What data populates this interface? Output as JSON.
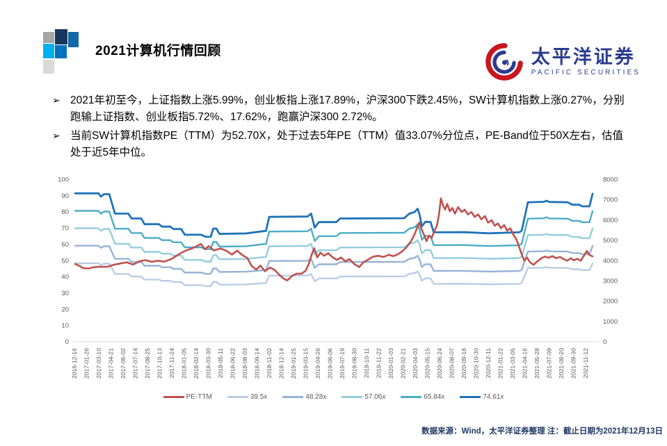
{
  "slide": {
    "title": "2021计算机行情回顾",
    "bullet_marker": "➢",
    "bullets": [
      "2021年初至今，上证指数上涨5.99%，创业板指上涨17.89%，沪深300下跌2.45%，SW计算机指数上涨0.27%，分别跑输上证指数、创业板指5.72%、17.62%，跑赢沪深300 2.72%。",
      "当前SW计算机指数PE（TTM）为52.70X，处于过去5年PE（TTM）值33.07%分位点，PE-Band位于50X左右，估值处于近5年中位。"
    ],
    "logo": {
      "cn": "太平洋证券",
      "en": "PACIFIC SECURITIES",
      "brand_blue": "#2a3b8f",
      "brand_red": "#c8161e"
    },
    "footer": "数据来源：Wind，太平洋证券整理 注：截止日期为2021年12月13日"
  },
  "chart_data": {
    "type": "line",
    "title": "",
    "grid": false,
    "legend_position": "bottom",
    "left_axis": {
      "min": 0,
      "max": 100,
      "step": 10
    },
    "right_axis": {
      "min": 0,
      "max": 8000,
      "step": 1000
    },
    "axis_label_color": "#595959",
    "x_labels": [
      "2016-12-16",
      "2017-01-26",
      "2017-03-10",
      "2017-04-21",
      "2017-06-02",
      "2017-07-14",
      "2017-08-25",
      "2017-10-13",
      "2017-11-24",
      "2018-01-05",
      "2018-02-14",
      "2018-03-30",
      "2018-05-11",
      "2018-06-22",
      "2018-08-03",
      "2018-09-14",
      "2018-11-02",
      "2018-12-14",
      "2019-01-25",
      "2019-03-15",
      "2019-04-26",
      "2019-06-06",
      "2019-07-19",
      "2019-08-30",
      "2019-10-11",
      "2019-11-22",
      "2020-01-03",
      "2020-02-21",
      "2020-04-03",
      "2020-05-15",
      "2020-06-24",
      "2020-08-07",
      "2020-09-18",
      "2020-10-30",
      "2020-12-11",
      "2021-01-22",
      "2021-03-05",
      "2021-04-16",
      "2021-05-28",
      "2021-07-09",
      "2021-08-20",
      "2021-09-30",
      "2021-11-12"
    ],
    "band_reference": {
      "multiple": 74.61,
      "note": "PE-band series value = reference value × (series multiple / 74.61); x is fraction of plot width (2016-12-16 → 2021-12-13), y is PE on left axis (right axis = left × 80)",
      "points": [
        [
          0.0,
          91.5
        ],
        [
          0.045,
          91.5
        ],
        [
          0.05,
          89.5
        ],
        [
          0.056,
          91.0
        ],
        [
          0.066,
          91.0
        ],
        [
          0.077,
          79.0
        ],
        [
          0.103,
          79.0
        ],
        [
          0.109,
          76.0
        ],
        [
          0.128,
          76.0
        ],
        [
          0.134,
          72.5
        ],
        [
          0.162,
          72.5
        ],
        [
          0.168,
          71.0
        ],
        [
          0.184,
          71.0
        ],
        [
          0.19,
          69.5
        ],
        [
          0.205,
          69.5
        ],
        [
          0.212,
          66.0
        ],
        [
          0.244,
          66.0
        ],
        [
          0.252,
          64.7
        ],
        [
          0.262,
          64.7
        ],
        [
          0.267,
          69.8
        ],
        [
          0.273,
          69.8
        ],
        [
          0.279,
          66.5
        ],
        [
          0.33,
          66.8
        ],
        [
          0.363,
          68.2
        ],
        [
          0.369,
          68.4
        ],
        [
          0.375,
          77.0
        ],
        [
          0.449,
          77.2
        ],
        [
          0.456,
          79.0
        ],
        [
          0.463,
          70.4
        ],
        [
          0.471,
          73.8
        ],
        [
          0.505,
          73.8
        ],
        [
          0.512,
          76.0
        ],
        [
          0.575,
          76.1
        ],
        [
          0.636,
          76.2
        ],
        [
          0.646,
          79.0
        ],
        [
          0.656,
          80.0
        ],
        [
          0.662,
          82.0
        ],
        [
          0.666,
          78.0
        ],
        [
          0.67,
          71.2
        ],
        [
          0.677,
          74.0
        ],
        [
          0.687,
          73.8
        ],
        [
          0.693,
          67.5
        ],
        [
          0.75,
          67.6
        ],
        [
          0.8,
          66.9
        ],
        [
          0.858,
          67.5
        ],
        [
          0.863,
          68.5
        ],
        [
          0.875,
          86.0
        ],
        [
          0.906,
          86.3
        ],
        [
          0.911,
          87.0
        ],
        [
          0.916,
          86.2
        ],
        [
          0.952,
          86.0
        ],
        [
          0.961,
          84.5
        ],
        [
          0.974,
          84.5
        ],
        [
          0.98,
          83.5
        ],
        [
          0.994,
          83.5
        ],
        [
          1.0,
          91.3
        ]
      ]
    },
    "series": [
      {
        "name": "PE-TTM",
        "color": "#c0504d",
        "width": 2.6,
        "points": [
          [
            0.0,
            48.0
          ],
          [
            0.008,
            46.8
          ],
          [
            0.016,
            45.4
          ],
          [
            0.026,
            45.2
          ],
          [
            0.036,
            46.0
          ],
          [
            0.048,
            46.3
          ],
          [
            0.062,
            46.2
          ],
          [
            0.076,
            47.6
          ],
          [
            0.088,
            48.3
          ],
          [
            0.1,
            49.0
          ],
          [
            0.112,
            47.6
          ],
          [
            0.124,
            49.6
          ],
          [
            0.136,
            50.3
          ],
          [
            0.148,
            49.3
          ],
          [
            0.16,
            50.0
          ],
          [
            0.172,
            49.4
          ],
          [
            0.186,
            51.0
          ],
          [
            0.198,
            53.5
          ],
          [
            0.212,
            56.0
          ],
          [
            0.228,
            57.8
          ],
          [
            0.243,
            60.3
          ],
          [
            0.251,
            57.0
          ],
          [
            0.258,
            59.0
          ],
          [
            0.268,
            56.3
          ],
          [
            0.281,
            57.5
          ],
          [
            0.293,
            56.0
          ],
          [
            0.303,
            53.8
          ],
          [
            0.313,
            56.2
          ],
          [
            0.323,
            53.5
          ],
          [
            0.333,
            51.5
          ],
          [
            0.341,
            46.8
          ],
          [
            0.35,
            44.5
          ],
          [
            0.358,
            47.0
          ],
          [
            0.367,
            43.5
          ],
          [
            0.377,
            45.8
          ],
          [
            0.386,
            44.2
          ],
          [
            0.394,
            41.5
          ],
          [
            0.402,
            39.2
          ],
          [
            0.41,
            37.8
          ],
          [
            0.419,
            40.5
          ],
          [
            0.428,
            42.0
          ],
          [
            0.438,
            42.0
          ],
          [
            0.446,
            44.0
          ],
          [
            0.452,
            48.5
          ],
          [
            0.457,
            53.5
          ],
          [
            0.462,
            57.7
          ],
          [
            0.468,
            52.0
          ],
          [
            0.474,
            55.0
          ],
          [
            0.481,
            53.0
          ],
          [
            0.489,
            54.6
          ],
          [
            0.498,
            52.0
          ],
          [
            0.506,
            50.5
          ],
          [
            0.514,
            52.0
          ],
          [
            0.522,
            49.6
          ],
          [
            0.53,
            51.0
          ],
          [
            0.54,
            47.8
          ],
          [
            0.549,
            46.1
          ],
          [
            0.557,
            49.0
          ],
          [
            0.566,
            50.6
          ],
          [
            0.576,
            52.5
          ],
          [
            0.586,
            53.0
          ],
          [
            0.596,
            52.3
          ],
          [
            0.606,
            53.6
          ],
          [
            0.615,
            52.8
          ],
          [
            0.624,
            54.0
          ],
          [
            0.633,
            56.0
          ],
          [
            0.641,
            58.5
          ],
          [
            0.649,
            62.0
          ],
          [
            0.655,
            65.5
          ],
          [
            0.66,
            69.5
          ],
          [
            0.665,
            73.5
          ],
          [
            0.669,
            70.0
          ],
          [
            0.674,
            66.0
          ],
          [
            0.679,
            62.0
          ],
          [
            0.684,
            65.5
          ],
          [
            0.689,
            64.0
          ],
          [
            0.694,
            68.0
          ],
          [
            0.699,
            71.5
          ],
          [
            0.703,
            78.0
          ],
          [
            0.707,
            88.5
          ],
          [
            0.711,
            84.0
          ],
          [
            0.715,
            81.5
          ],
          [
            0.719,
            85.0
          ],
          [
            0.724,
            80.5
          ],
          [
            0.729,
            82.5
          ],
          [
            0.734,
            79.0
          ],
          [
            0.74,
            83.0
          ],
          [
            0.747,
            80.0
          ],
          [
            0.753,
            81.5
          ],
          [
            0.759,
            78.5
          ],
          [
            0.766,
            80.0
          ],
          [
            0.772,
            77.0
          ],
          [
            0.779,
            78.5
          ],
          [
            0.785,
            75.5
          ],
          [
            0.792,
            77.5
          ],
          [
            0.798,
            73.5
          ],
          [
            0.805,
            75.0
          ],
          [
            0.811,
            71.5
          ],
          [
            0.817,
            73.0
          ],
          [
            0.823,
            70.0
          ],
          [
            0.829,
            72.0
          ],
          [
            0.835,
            68.5
          ],
          [
            0.841,
            70.0
          ],
          [
            0.847,
            66.0
          ],
          [
            0.853,
            63.0
          ],
          [
            0.858,
            58.5
          ],
          [
            0.863,
            54.0
          ],
          [
            0.868,
            50.0
          ],
          [
            0.873,
            52.0
          ],
          [
            0.879,
            49.0
          ],
          [
            0.886,
            47.5
          ],
          [
            0.893,
            49.5
          ],
          [
            0.901,
            51.5
          ],
          [
            0.908,
            52.5
          ],
          [
            0.915,
            51.8
          ],
          [
            0.922,
            52.8
          ],
          [
            0.93,
            51.5
          ],
          [
            0.937,
            52.3
          ],
          [
            0.944,
            51.0
          ],
          [
            0.951,
            50.0
          ],
          [
            0.958,
            51.5
          ],
          [
            0.964,
            50.2
          ],
          [
            0.97,
            51.2
          ],
          [
            0.977,
            50.0
          ],
          [
            0.983,
            53.0
          ],
          [
            0.989,
            56.0
          ],
          [
            0.994,
            53.5
          ],
          [
            1.0,
            52.7
          ]
        ]
      },
      {
        "name": "39.5x",
        "color": "#b9cde5",
        "width": 2.4,
        "multiple": 39.5
      },
      {
        "name": "48.28x",
        "color": "#95b3d7",
        "width": 2.4,
        "multiple": 48.28
      },
      {
        "name": "57.06x",
        "color": "#93cddd",
        "width": 2.4,
        "multiple": 57.06
      },
      {
        "name": "65.84x",
        "color": "#4bacc6",
        "width": 2.4,
        "multiple": 65.84
      },
      {
        "name": "74.61x",
        "color": "#1f72b8",
        "width": 2.8,
        "multiple": 74.61
      }
    ]
  }
}
